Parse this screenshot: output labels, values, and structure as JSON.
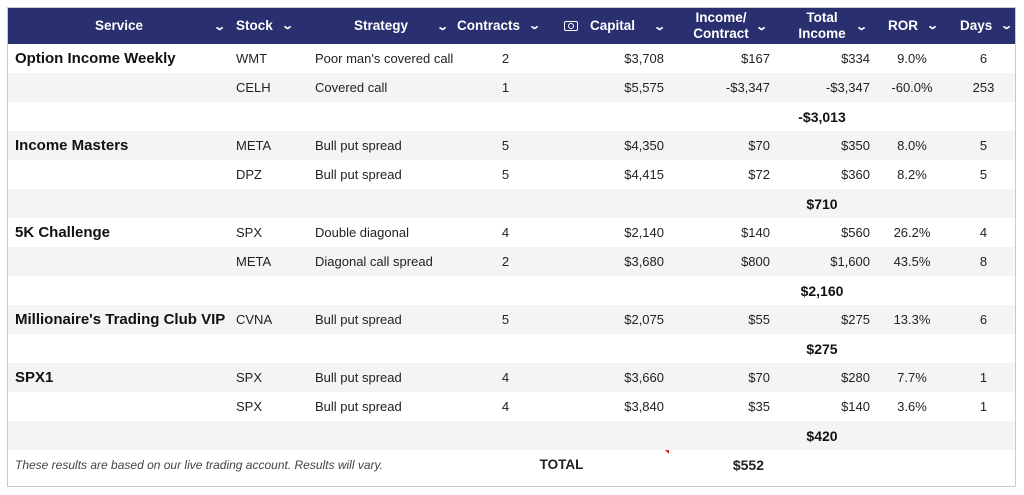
{
  "headers": {
    "service": "Service",
    "stock": "Stock",
    "strategy": "Strategy",
    "contracts": "Contracts",
    "capital": "Capital",
    "income_per_contract_1": "Income/",
    "income_per_contract_2": "Contract",
    "total_income_1": "Total",
    "total_income_2": "Income",
    "ror": "ROR",
    "days": "Days"
  },
  "rows": [
    {
      "service": "Option Income Weekly",
      "stock": "WMT",
      "strategy": "Poor man's covered call",
      "contracts": "2",
      "capital": "$3,708",
      "income_per_contract": "$167",
      "total_income": "$334",
      "ror": "9.0%",
      "days": "6"
    },
    {
      "service": "",
      "stock": "CELH",
      "strategy": "Covered call",
      "contracts": "1",
      "capital": "$5,575",
      "income_per_contract": "-$3,347",
      "total_income": "-$3,347",
      "ror": "-60.0%",
      "days": "253"
    },
    {
      "subtotal": "-$3,013"
    },
    {
      "service": "Income Masters",
      "stock": "META",
      "strategy": "Bull put spread",
      "contracts": "5",
      "capital": "$4,350",
      "income_per_contract": "$70",
      "total_income": "$350",
      "ror": "8.0%",
      "days": "5"
    },
    {
      "service": "",
      "stock": "DPZ",
      "strategy": "Bull put spread",
      "contracts": "5",
      "capital": "$4,415",
      "income_per_contract": "$72",
      "total_income": "$360",
      "ror": "8.2%",
      "days": "5"
    },
    {
      "subtotal": "$710"
    },
    {
      "service": "5K Challenge",
      "stock": "SPX",
      "strategy": "Double diagonal",
      "contracts": "4",
      "capital": "$2,140",
      "income_per_contract": "$140",
      "total_income": "$560",
      "ror": "26.2%",
      "days": "4"
    },
    {
      "service": "",
      "stock": "META",
      "strategy": "Diagonal call spread",
      "contracts": "2",
      "capital": "$3,680",
      "income_per_contract": "$800",
      "total_income": "$1,600",
      "ror": "43.5%",
      "days": "8"
    },
    {
      "subtotal": "$2,160"
    },
    {
      "service": "Millionaire's Trading Club VIP",
      "stock": "CVNA",
      "strategy": "Bull put spread",
      "contracts": "5",
      "capital": "$2,075",
      "income_per_contract": "$55",
      "total_income": "$275",
      "ror": "13.3%",
      "days": "6"
    },
    {
      "subtotal": "$275"
    },
    {
      "service": "SPX1",
      "stock": "SPX",
      "strategy": "Bull put spread",
      "contracts": "4",
      "capital": "$3,660",
      "income_per_contract": "$70",
      "total_income": "$280",
      "ror": "7.7%",
      "days": "1"
    },
    {
      "service": "",
      "stock": "SPX",
      "strategy": "Bull put spread",
      "contracts": "4",
      "capital": "$3,840",
      "income_per_contract": "$35",
      "total_income": "$140",
      "ror": "3.6%",
      "days": "1"
    },
    {
      "subtotal": "$420"
    }
  ],
  "footer": {
    "note": "These results are based on our live trading account. Results will vary.",
    "total_label": "TOTAL",
    "total_value": "$552"
  },
  "colors": {
    "header_bg": "#2a2f6f",
    "alt_row_bg": "#f4f4f7",
    "flag": "#d62b2b"
  }
}
